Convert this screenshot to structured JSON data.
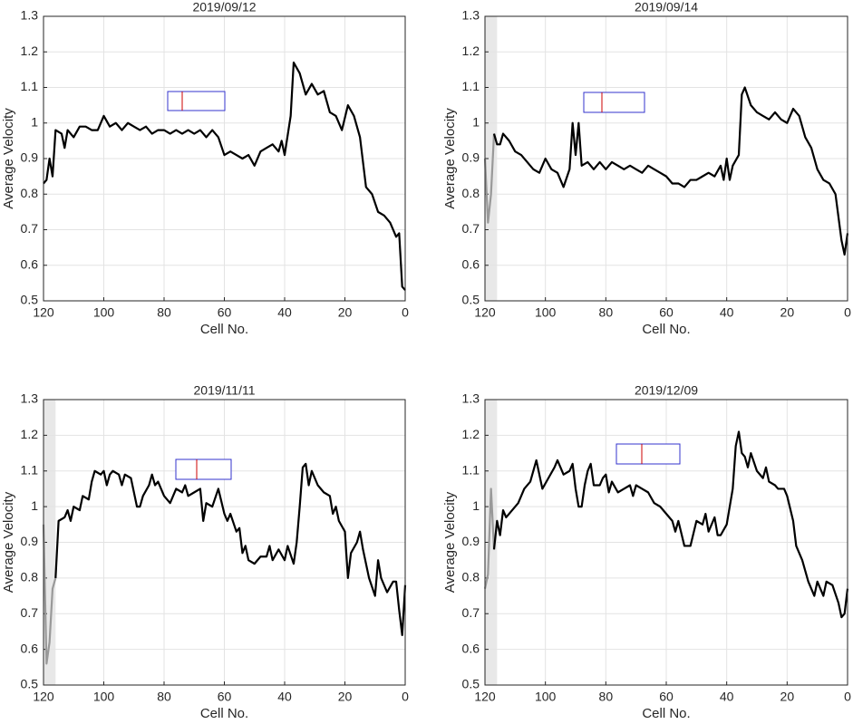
{
  "chart_data": [
    {
      "type": "line",
      "title": "2019/09/12",
      "xlabel": "Cell No.",
      "ylabel": "Average Velocity",
      "xlim": [
        120,
        0
      ],
      "ylim": [
        0.5,
        1.3
      ],
      "xticks": [
        120,
        100,
        80,
        60,
        40,
        20,
        0
      ],
      "yticks": [
        0.5,
        0.6,
        0.7,
        0.8,
        0.9,
        1,
        1.1,
        1.2,
        1.3
      ],
      "grid": true,
      "series": [
        {
          "color": "#000000",
          "x": [
            120,
            119,
            118,
            117,
            116,
            114,
            113,
            112,
            110,
            108,
            106,
            104,
            102,
            100,
            98,
            96,
            94,
            92,
            90,
            88,
            86,
            84,
            82,
            80,
            78,
            76,
            74,
            72,
            70,
            68,
            66,
            64,
            62,
            60,
            58,
            56,
            54,
            52,
            50,
            48,
            46,
            44,
            42,
            41,
            40,
            38,
            37,
            35,
            33,
            31,
            29,
            27,
            25,
            23,
            21,
            19,
            17,
            15,
            13,
            11,
            9,
            7,
            5,
            3,
            2,
            1,
            0
          ],
          "values": [
            0.83,
            0.84,
            0.9,
            0.85,
            0.98,
            0.97,
            0.93,
            0.98,
            0.96,
            0.99,
            0.99,
            0.98,
            0.98,
            1.02,
            0.99,
            1.0,
            0.98,
            1.0,
            0.99,
            0.98,
            0.99,
            0.97,
            0.98,
            0.98,
            0.97,
            0.98,
            0.97,
            0.98,
            0.97,
            0.98,
            0.96,
            0.98,
            0.96,
            0.91,
            0.92,
            0.91,
            0.9,
            0.91,
            0.88,
            0.92,
            0.93,
            0.94,
            0.92,
            0.95,
            0.91,
            1.02,
            1.17,
            1.14,
            1.08,
            1.11,
            1.08,
            1.09,
            1.03,
            1.02,
            0.98,
            1.05,
            1.02,
            0.96,
            0.82,
            0.8,
            0.75,
            0.74,
            0.72,
            0.68,
            0.69,
            0.54,
            0.53
          ]
        }
      ]
    },
    {
      "type": "line",
      "title": "2019/09/14",
      "xlabel": "Cell No.",
      "ylabel": "Average Velocity",
      "xlim": [
        120,
        0
      ],
      "ylim": [
        0.5,
        1.3
      ],
      "xticks": [
        120,
        100,
        80,
        60,
        40,
        20,
        0
      ],
      "yticks": [
        0.5,
        0.6,
        0.7,
        0.8,
        0.9,
        1,
        1.1,
        1.2,
        1.3
      ],
      "grid": true,
      "shade": {
        "x": [
          120,
          116
        ],
        "color": "#e8e8e8"
      },
      "series": [
        {
          "color": "#999999",
          "x": [
            120,
            119,
            118,
            117
          ],
          "values": [
            0.9,
            0.72,
            0.8,
            0.97
          ]
        },
        {
          "color": "#000000",
          "x": [
            117,
            116,
            115,
            114,
            112,
            110,
            108,
            106,
            104,
            102,
            100,
            98,
            96,
            94,
            92,
            91,
            90,
            89,
            88,
            86,
            84,
            82,
            80,
            78,
            76,
            74,
            72,
            70,
            68,
            66,
            64,
            62,
            60,
            58,
            56,
            54,
            52,
            50,
            48,
            46,
            44,
            42,
            41,
            40,
            39,
            38,
            36,
            35,
            34,
            32,
            30,
            28,
            26,
            24,
            22,
            20,
            18,
            16,
            14,
            12,
            10,
            8,
            6,
            4,
            2,
            1,
            0
          ],
          "values": [
            0.97,
            0.94,
            0.94,
            0.97,
            0.95,
            0.92,
            0.91,
            0.89,
            0.87,
            0.86,
            0.9,
            0.87,
            0.86,
            0.82,
            0.87,
            1.0,
            0.91,
            1.0,
            0.88,
            0.89,
            0.87,
            0.89,
            0.87,
            0.89,
            0.88,
            0.87,
            0.88,
            0.87,
            0.86,
            0.88,
            0.87,
            0.86,
            0.85,
            0.83,
            0.83,
            0.82,
            0.84,
            0.84,
            0.85,
            0.86,
            0.85,
            0.88,
            0.84,
            0.9,
            0.84,
            0.88,
            0.91,
            1.08,
            1.1,
            1.05,
            1.03,
            1.02,
            1.01,
            1.03,
            1.01,
            1.0,
            1.04,
            1.02,
            0.96,
            0.93,
            0.87,
            0.84,
            0.83,
            0.8,
            0.67,
            0.63,
            0.69
          ]
        }
      ]
    },
    {
      "type": "line",
      "title": "2019/11/11",
      "xlabel": "Cell No.",
      "ylabel": "Average Velocity",
      "xlim": [
        120,
        0
      ],
      "ylim": [
        0.5,
        1.3
      ],
      "xticks": [
        120,
        100,
        80,
        60,
        40,
        20,
        0
      ],
      "yticks": [
        0.5,
        0.6,
        0.7,
        0.8,
        0.9,
        1,
        1.1,
        1.2,
        1.3
      ],
      "grid": true,
      "shade": {
        "x": [
          120,
          116
        ],
        "color": "#e8e8e8"
      },
      "series": [
        {
          "color": "#999999",
          "x": [
            120,
            119,
            118,
            117,
            116
          ],
          "values": [
            0.95,
            0.56,
            0.62,
            0.77,
            0.8
          ]
        },
        {
          "color": "#000000",
          "x": [
            116,
            115,
            113,
            112,
            111,
            110,
            108,
            107,
            105,
            104,
            103,
            101,
            100,
            99,
            98,
            97,
            95,
            94,
            93,
            91,
            89,
            88,
            87,
            85,
            84,
            83,
            82,
            80,
            78,
            76,
            74,
            73,
            72,
            70,
            68,
            67,
            66,
            64,
            62,
            60,
            59,
            58,
            56,
            55,
            54,
            53,
            52,
            50,
            48,
            46,
            45,
            44,
            42,
            40,
            39,
            37,
            36,
            35,
            34,
            33,
            32,
            31,
            29,
            27,
            25,
            24,
            23,
            22,
            20,
            19,
            18,
            16,
            15,
            14,
            12,
            10,
            9,
            8,
            6,
            4,
            3,
            2,
            1,
            0
          ],
          "values": [
            0.8,
            0.96,
            0.97,
            0.99,
            0.96,
            1.0,
            0.99,
            1.03,
            1.02,
            1.07,
            1.1,
            1.09,
            1.1,
            1.06,
            1.09,
            1.1,
            1.09,
            1.06,
            1.09,
            1.08,
            1.0,
            1.0,
            1.03,
            1.06,
            1.09,
            1.06,
            1.07,
            1.03,
            1.01,
            1.05,
            1.04,
            1.06,
            1.03,
            1.04,
            1.05,
            0.96,
            1.01,
            1.0,
            1.05,
            0.98,
            0.96,
            0.98,
            0.93,
            0.94,
            0.87,
            0.89,
            0.85,
            0.84,
            0.86,
            0.86,
            0.89,
            0.85,
            0.88,
            0.85,
            0.89,
            0.84,
            0.9,
            1.0,
            1.11,
            1.12,
            1.06,
            1.1,
            1.06,
            1.04,
            1.03,
            0.98,
            1.0,
            0.96,
            0.93,
            0.8,
            0.87,
            0.9,
            0.93,
            0.88,
            0.8,
            0.75,
            0.85,
            0.8,
            0.76,
            0.79,
            0.79,
            0.71,
            0.64,
            0.78
          ]
        }
      ]
    },
    {
      "type": "line",
      "title": "2019/12/09",
      "xlabel": "Cell No.",
      "ylabel": "Average Velocity",
      "xlim": [
        120,
        0
      ],
      "ylim": [
        0.5,
        1.3
      ],
      "xticks": [
        120,
        100,
        80,
        60,
        40,
        20,
        0
      ],
      "yticks": [
        0.5,
        0.6,
        0.7,
        0.8,
        0.9,
        1,
        1.1,
        1.2,
        1.3
      ],
      "grid": true,
      "shade": {
        "x": [
          120,
          116
        ],
        "color": "#e8e8e8"
      },
      "series": [
        {
          "color": "#999999",
          "x": [
            120,
            119,
            118,
            117
          ],
          "values": [
            0.77,
            0.81,
            1.05,
            0.88
          ]
        },
        {
          "color": "#000000",
          "x": [
            117,
            116,
            115,
            114,
            113,
            111,
            109,
            107,
            105,
            103,
            101,
            99,
            97,
            96,
            94,
            92,
            91,
            90,
            89,
            88,
            87,
            86,
            85,
            84,
            82,
            81,
            80,
            79,
            78,
            76,
            74,
            72,
            71,
            70,
            68,
            66,
            64,
            62,
            60,
            58,
            57,
            56,
            54,
            52,
            50,
            48,
            47,
            46,
            44,
            43,
            42,
            40,
            38,
            37,
            36,
            35,
            34,
            33,
            32,
            30,
            28,
            27,
            26,
            24,
            23,
            22,
            21,
            20,
            18,
            17,
            15,
            13,
            11,
            10,
            8,
            7,
            5,
            3,
            2,
            1,
            0
          ],
          "values": [
            0.88,
            0.96,
            0.92,
            0.99,
            0.97,
            0.99,
            1.01,
            1.05,
            1.07,
            1.13,
            1.05,
            1.08,
            1.11,
            1.13,
            1.09,
            1.1,
            1.12,
            1.05,
            1.0,
            1.0,
            1.06,
            1.1,
            1.12,
            1.06,
            1.06,
            1.08,
            1.09,
            1.04,
            1.07,
            1.04,
            1.05,
            1.06,
            1.03,
            1.06,
            1.05,
            1.04,
            1.01,
            1.0,
            0.98,
            0.96,
            0.93,
            0.96,
            0.89,
            0.89,
            0.96,
            0.95,
            0.98,
            0.93,
            0.97,
            0.92,
            0.92,
            0.95,
            1.05,
            1.17,
            1.21,
            1.15,
            1.14,
            1.11,
            1.15,
            1.1,
            1.08,
            1.11,
            1.07,
            1.06,
            1.05,
            1.05,
            1.05,
            1.03,
            0.96,
            0.89,
            0.85,
            0.79,
            0.75,
            0.79,
            0.75,
            0.79,
            0.78,
            0.73,
            0.69,
            0.7,
            0.77
          ]
        }
      ]
    }
  ]
}
